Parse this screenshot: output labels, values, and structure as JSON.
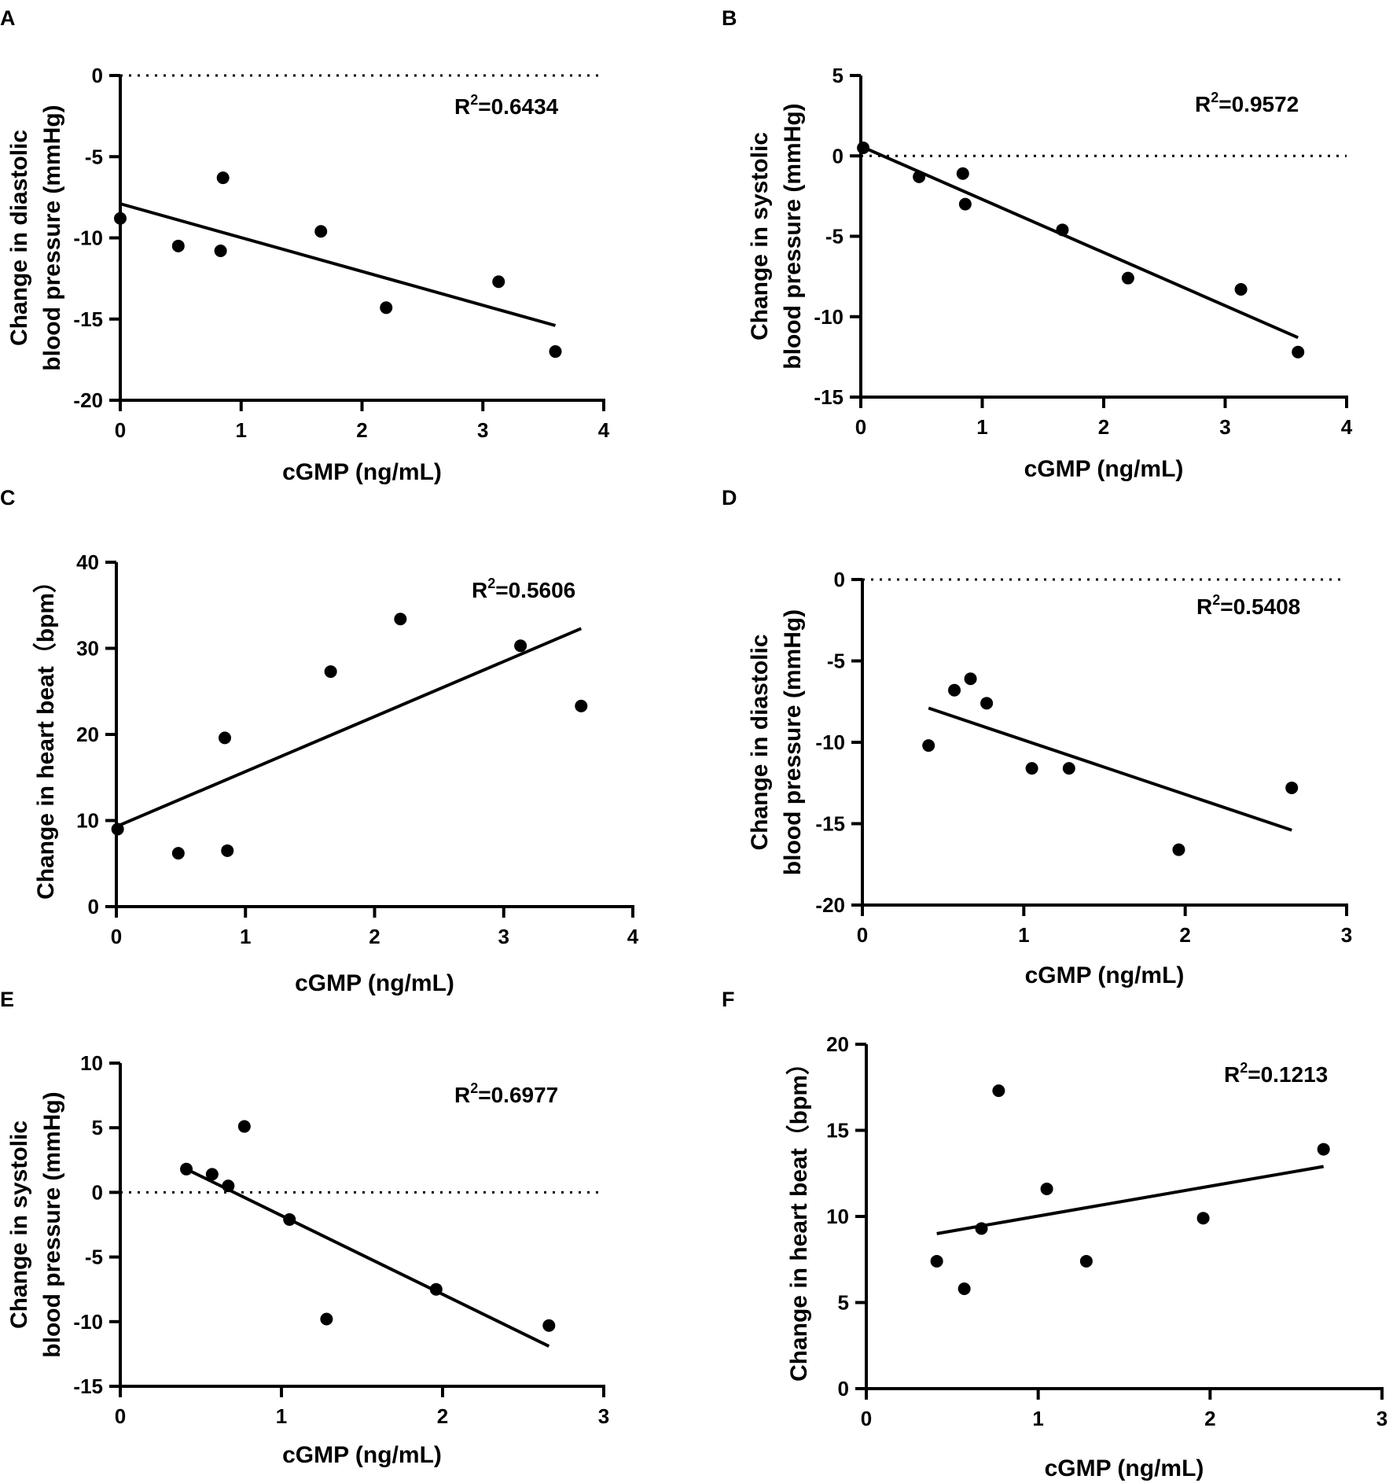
{
  "figure": {
    "panels_count": 6
  },
  "chart_data": [
    {
      "panel": "A",
      "type": "scatter",
      "xlabel": "cGMP (ng/mL)",
      "ylabel": [
        "Change in diastolic",
        "blood pressure (mmHg)"
      ],
      "xlim": [
        0,
        4
      ],
      "ylim": [
        -20,
        0
      ],
      "xticks": [
        0,
        1,
        2,
        3,
        4
      ],
      "yticks": [
        0,
        -5,
        -10,
        -15,
        -20
      ],
      "zero_reference_line": true,
      "points": [
        {
          "x": 0.0,
          "y": -8.8
        },
        {
          "x": 0.48,
          "y": -10.5
        },
        {
          "x": 0.83,
          "y": -10.8
        },
        {
          "x": 0.85,
          "y": -6.3
        },
        {
          "x": 1.66,
          "y": -9.6
        },
        {
          "x": 2.2,
          "y": -14.3
        },
        {
          "x": 3.13,
          "y": -12.7
        },
        {
          "x": 3.6,
          "y": -17.0
        }
      ],
      "fit": {
        "x": [
          0.0,
          3.6
        ],
        "y": [
          -7.9,
          -15.4
        ]
      },
      "r2_label": "R",
      "r2_sup": "2",
      "r2_value": "=0.6434"
    },
    {
      "panel": "B",
      "type": "scatter",
      "xlabel": "cGMP (ng/mL)",
      "ylabel": [
        "Change in systolic",
        "blood pressure (mmHg)"
      ],
      "xlim": [
        0,
        4
      ],
      "ylim": [
        -15,
        5
      ],
      "xticks": [
        0,
        1,
        2,
        3,
        4
      ],
      "yticks": [
        5,
        0,
        -5,
        -10,
        -15
      ],
      "zero_reference_line": true,
      "points": [
        {
          "x": 0.02,
          "y": 0.5
        },
        {
          "x": 0.48,
          "y": -1.3
        },
        {
          "x": 0.84,
          "y": -1.1
        },
        {
          "x": 0.86,
          "y": -3.0
        },
        {
          "x": 1.66,
          "y": -4.6
        },
        {
          "x": 2.2,
          "y": -7.6
        },
        {
          "x": 3.13,
          "y": -8.3
        },
        {
          "x": 3.6,
          "y": -12.2
        }
      ],
      "fit": {
        "x": [
          0.0,
          3.6
        ],
        "y": [
          0.6,
          -11.3
        ]
      },
      "r2_label": "R",
      "r2_sup": "2",
      "r2_value": "=0.9572"
    },
    {
      "panel": "C",
      "type": "scatter",
      "xlabel": "cGMP (ng/mL)",
      "ylabel": [
        "Change in heart beat（bpm）"
      ],
      "xlim": [
        0,
        4
      ],
      "ylim": [
        0,
        40
      ],
      "xticks": [
        0,
        1,
        2,
        3,
        4
      ],
      "yticks": [
        0,
        10,
        20,
        30,
        40
      ],
      "zero_reference_line": false,
      "points": [
        {
          "x": 0.01,
          "y": 9.0
        },
        {
          "x": 0.48,
          "y": 6.2
        },
        {
          "x": 0.84,
          "y": 19.6
        },
        {
          "x": 0.86,
          "y": 6.5
        },
        {
          "x": 1.66,
          "y": 27.3
        },
        {
          "x": 2.2,
          "y": 33.4
        },
        {
          "x": 3.13,
          "y": 30.3
        },
        {
          "x": 3.6,
          "y": 23.3
        }
      ],
      "fit": {
        "x": [
          0.0,
          3.6
        ],
        "y": [
          9.3,
          32.3
        ]
      },
      "r2_label": "R",
      "r2_sup": "2",
      "r2_value": "=0.5606"
    },
    {
      "panel": "D",
      "type": "scatter",
      "xlabel": "cGMP (ng/mL)",
      "ylabel": [
        "Change in diastolic",
        "blood pressure (mmHg)"
      ],
      "xlim": [
        0,
        3
      ],
      "ylim": [
        -20,
        0
      ],
      "xticks": [
        0,
        1,
        2,
        3
      ],
      "yticks": [
        0,
        -5,
        -10,
        -15,
        -20
      ],
      "zero_reference_line": true,
      "points": [
        {
          "x": 0.41,
          "y": -10.2
        },
        {
          "x": 0.57,
          "y": -6.8
        },
        {
          "x": 0.67,
          "y": -6.1
        },
        {
          "x": 0.77,
          "y": -7.6
        },
        {
          "x": 1.05,
          "y": -11.6
        },
        {
          "x": 1.28,
          "y": -11.6
        },
        {
          "x": 1.96,
          "y": -16.6
        },
        {
          "x": 2.66,
          "y": -12.8
        }
      ],
      "fit": {
        "x": [
          0.41,
          2.66
        ],
        "y": [
          -7.9,
          -15.4
        ]
      },
      "r2_label": "R",
      "r2_sup": "2",
      "r2_value": "=0.5408"
    },
    {
      "panel": "E",
      "type": "scatter",
      "xlabel": "cGMP (ng/mL)",
      "ylabel": [
        "Change in systolic",
        "blood pressure (mmHg)"
      ],
      "xlim": [
        0,
        3
      ],
      "ylim": [
        -15,
        10
      ],
      "xticks": [
        0,
        1,
        2,
        3
      ],
      "yticks": [
        10,
        5,
        0,
        -5,
        -10,
        -15
      ],
      "zero_reference_line": true,
      "points": [
        {
          "x": 0.41,
          "y": 1.8
        },
        {
          "x": 0.57,
          "y": 1.4
        },
        {
          "x": 0.67,
          "y": 0.5
        },
        {
          "x": 0.77,
          "y": 5.1
        },
        {
          "x": 1.05,
          "y": -2.1
        },
        {
          "x": 1.28,
          "y": -9.8
        },
        {
          "x": 1.96,
          "y": -7.5
        },
        {
          "x": 2.66,
          "y": -10.3
        }
      ],
      "fit": {
        "x": [
          0.41,
          2.66
        ],
        "y": [
          1.8,
          -11.9
        ]
      },
      "r2_label": "R",
      "r2_sup": "2",
      "r2_value": "=0.6977"
    },
    {
      "panel": "F",
      "type": "scatter",
      "xlabel": "cGMP (ng/mL)",
      "ylabel": [
        "Change in heart beat（bpm）"
      ],
      "xlim": [
        0,
        3
      ],
      "ylim": [
        0,
        20
      ],
      "xticks": [
        0,
        1,
        2,
        3
      ],
      "yticks": [
        0,
        5,
        10,
        15,
        20
      ],
      "zero_reference_line": false,
      "points": [
        {
          "x": 0.41,
          "y": 7.4
        },
        {
          "x": 0.57,
          "y": 5.8
        },
        {
          "x": 0.67,
          "y": 9.3
        },
        {
          "x": 0.77,
          "y": 17.3
        },
        {
          "x": 1.05,
          "y": 11.6
        },
        {
          "x": 1.28,
          "y": 7.4
        },
        {
          "x": 1.96,
          "y": 9.9
        },
        {
          "x": 2.66,
          "y": 13.9
        }
      ],
      "fit": {
        "x": [
          0.41,
          2.66
        ],
        "y": [
          9.0,
          12.9
        ]
      },
      "r2_label": "R",
      "r2_sup": "2",
      "r2_value": "=0.1213"
    }
  ]
}
